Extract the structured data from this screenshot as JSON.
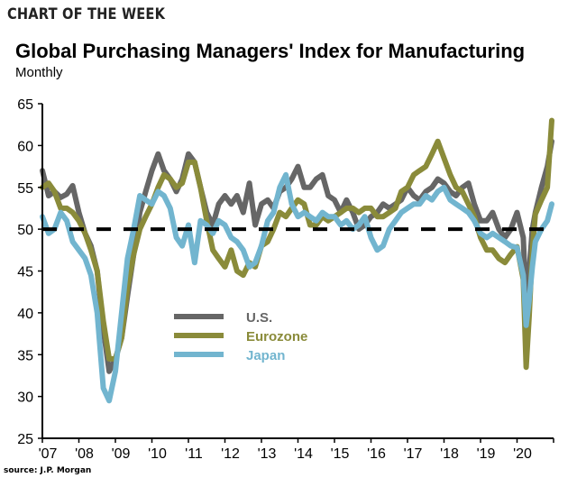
{
  "header": {
    "kicker": "CHART OF THE WEEK",
    "title": "Global Purchasing Managers' Index for Manufacturing",
    "subtitle": "Monthly"
  },
  "footer": {
    "source": "source: J.P. Morgan"
  },
  "chart_data": {
    "type": "line",
    "title": "Global Purchasing Managers' Index for Manufacturing",
    "subtitle": "Monthly",
    "xlabel": "",
    "ylabel": "",
    "ylim": [
      25,
      65
    ],
    "xlim": [
      2007.0,
      2021.0
    ],
    "yticks": [
      25,
      30,
      35,
      40,
      45,
      50,
      55,
      60,
      65
    ],
    "xticks": [
      {
        "x": 2007,
        "label": "'07"
      },
      {
        "x": 2008,
        "label": "'08"
      },
      {
        "x": 2009,
        "label": "'09"
      },
      {
        "x": 2010,
        "label": "'10"
      },
      {
        "x": 2011,
        "label": "'11"
      },
      {
        "x": 2012,
        "label": "'12"
      },
      {
        "x": 2013,
        "label": "'13"
      },
      {
        "x": 2014,
        "label": "'14"
      },
      {
        "x": 2015,
        "label": "'15"
      },
      {
        "x": 2016,
        "label": "'16"
      },
      {
        "x": 2017,
        "label": "'17"
      },
      {
        "x": 2018,
        "label": "'18"
      },
      {
        "x": 2019,
        "label": "'19"
      },
      {
        "x": 2020,
        "label": "'20"
      }
    ],
    "reference_line": {
      "y": 50,
      "style": "dashed",
      "color": "#000000"
    },
    "grid": false,
    "legend": {
      "placement": "center-left"
    },
    "x": [
      2007.0,
      2007.17,
      2007.33,
      2007.5,
      2007.67,
      2007.83,
      2008.0,
      2008.17,
      2008.33,
      2008.5,
      2008.67,
      2008.83,
      2009.0,
      2009.17,
      2009.33,
      2009.5,
      2009.67,
      2009.83,
      2010.0,
      2010.17,
      2010.33,
      2010.5,
      2010.67,
      2010.83,
      2011.0,
      2011.17,
      2011.33,
      2011.5,
      2011.67,
      2011.83,
      2012.0,
      2012.17,
      2012.33,
      2012.5,
      2012.67,
      2012.83,
      2013.0,
      2013.17,
      2013.33,
      2013.5,
      2013.67,
      2013.83,
      2014.0,
      2014.17,
      2014.33,
      2014.5,
      2014.67,
      2014.83,
      2015.0,
      2015.17,
      2015.33,
      2015.5,
      2015.67,
      2015.83,
      2016.0,
      2016.17,
      2016.33,
      2016.5,
      2016.67,
      2016.83,
      2017.0,
      2017.17,
      2017.33,
      2017.5,
      2017.67,
      2017.83,
      2018.0,
      2018.17,
      2018.33,
      2018.5,
      2018.67,
      2018.83,
      2019.0,
      2019.17,
      2019.33,
      2019.5,
      2019.67,
      2019.83,
      2020.0,
      2020.17,
      2020.25,
      2020.33,
      2020.42,
      2020.5,
      2020.67,
      2020.83,
      2020.95
    ],
    "series": [
      {
        "name": "U.S.",
        "color": "#666666",
        "values": [
          57.0,
          54.0,
          54.5,
          53.8,
          54.2,
          55.2,
          52.0,
          49.5,
          48.0,
          45.0,
          38.0,
          33.0,
          34.5,
          37.0,
          42.0,
          47.0,
          52.0,
          54.5,
          57.0,
          59.0,
          57.0,
          56.0,
          54.5,
          56.0,
          59.0,
          58.0,
          55.0,
          52.0,
          50.5,
          53.0,
          54.0,
          53.0,
          54.0,
          52.0,
          55.5,
          50.5,
          53.0,
          53.5,
          52.5,
          54.5,
          55.0,
          56.0,
          57.5,
          55.0,
          55.0,
          56.0,
          56.5,
          54.0,
          53.5,
          52.0,
          53.5,
          52.0,
          50.0,
          50.5,
          51.5,
          52.0,
          53.0,
          52.5,
          53.0,
          53.5,
          55.0,
          54.0,
          53.5,
          54.5,
          55.0,
          56.0,
          55.5,
          54.5,
          54.0,
          55.0,
          55.5,
          53.0,
          51.0,
          51.0,
          52.0,
          50.0,
          49.0,
          50.0,
          52.0,
          49.0,
          41.0,
          45.0,
          50.0,
          52.0,
          55.0,
          57.5,
          60.5
        ]
      },
      {
        "name": "Eurozone",
        "color": "#8A8B3A",
        "values": [
          55.0,
          55.5,
          54.5,
          52.5,
          52.5,
          52.0,
          51.0,
          49.5,
          47.5,
          45.0,
          39.0,
          34.5,
          34.5,
          37.0,
          43.0,
          47.0,
          50.0,
          51.5,
          53.0,
          55.0,
          56.5,
          56.0,
          55.0,
          55.5,
          58.0,
          58.0,
          55.0,
          51.0,
          47.5,
          46.5,
          45.5,
          47.5,
          45.0,
          44.5,
          46.0,
          45.5,
          48.0,
          48.5,
          50.0,
          52.0,
          51.5,
          52.5,
          53.5,
          53.0,
          50.5,
          50.5,
          51.5,
          51.0,
          51.5,
          52.0,
          52.5,
          52.5,
          52.0,
          52.5,
          52.5,
          51.5,
          51.5,
          52.0,
          52.5,
          54.5,
          55.0,
          56.5,
          57.0,
          57.5,
          59.0,
          60.5,
          58.5,
          56.5,
          55.0,
          54.5,
          53.0,
          51.5,
          49.0,
          47.5,
          47.5,
          46.5,
          46.0,
          47.0,
          47.9,
          44.0,
          33.5,
          39.5,
          47.5,
          51.8,
          53.5,
          55.0,
          63.0
        ]
      },
      {
        "name": "Japan",
        "color": "#72B5CF",
        "values": [
          51.5,
          49.5,
          50.0,
          52.0,
          51.0,
          48.5,
          47.5,
          46.5,
          44.5,
          40.0,
          31.0,
          29.5,
          33.0,
          40.0,
          46.5,
          50.0,
          54.0,
          53.5,
          53.0,
          54.5,
          54.0,
          52.5,
          49.0,
          48.0,
          50.5,
          46.0,
          51.0,
          50.5,
          49.5,
          51.0,
          50.5,
          49.0,
          48.5,
          47.5,
          45.5,
          46.0,
          48.0,
          51.0,
          52.0,
          55.0,
          56.5,
          53.0,
          51.5,
          52.0,
          51.5,
          51.0,
          52.0,
          51.5,
          51.5,
          50.5,
          51.0,
          50.0,
          50.5,
          51.5,
          49.0,
          47.5,
          48.0,
          50.0,
          51.0,
          52.0,
          52.5,
          53.0,
          53.0,
          54.0,
          53.5,
          54.5,
          55.0,
          53.5,
          53.0,
          52.5,
          52.0,
          51.0,
          49.5,
          49.0,
          49.5,
          49.0,
          48.5,
          48.0,
          47.8,
          44.5,
          38.5,
          41.5,
          45.5,
          48.5,
          50.0,
          51.0,
          53.0
        ]
      }
    ]
  }
}
